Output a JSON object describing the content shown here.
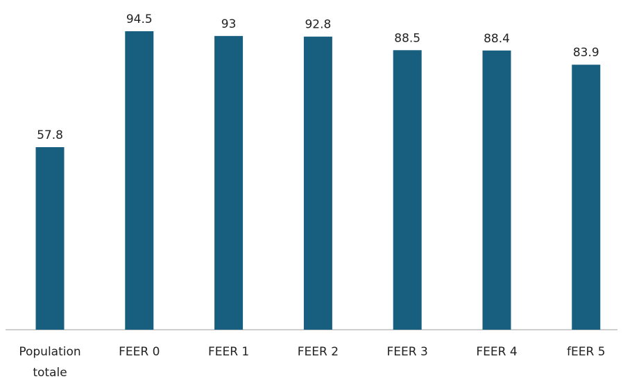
{
  "chart_data": {
    "type": "bar",
    "categories": [
      "Population totale",
      "FEER 0",
      "FEER 1",
      "FEER 2",
      "FEER 3",
      "FEER 4",
      "fEER 5"
    ],
    "values": [
      57.8,
      94.5,
      93,
      92.8,
      88.5,
      88.4,
      83.9
    ],
    "color": "#175e7f"
  }
}
